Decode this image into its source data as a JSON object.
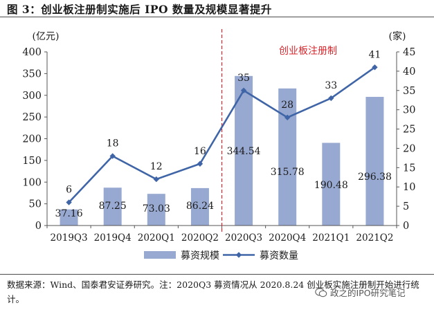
{
  "title": "图 3：创业板注册制实施后 IPO 数量及规模显著提升",
  "chart_data": {
    "type": "bar+line",
    "categories": [
      "2019Q3",
      "2019Q4",
      "2020Q1",
      "2020Q2",
      "2020Q3",
      "2020Q4",
      "2021Q1",
      "2021Q2"
    ],
    "series": [
      {
        "name": "募资规模",
        "type": "bar",
        "axis": "left",
        "values": [
          37.16,
          87.25,
          73.03,
          86.24,
          344.54,
          315.78,
          190.48,
          296.38
        ],
        "labels": [
          "37.16",
          "87.25",
          "73.03",
          "86.24",
          "344.54",
          "315.78",
          "190.48",
          "296.38"
        ]
      },
      {
        "name": "募资数量",
        "type": "line",
        "axis": "right",
        "values": [
          6,
          18,
          12,
          16,
          35,
          28,
          33,
          41
        ],
        "labels": [
          "6",
          "18",
          "12",
          "16",
          "35",
          "28",
          "33",
          "41"
        ]
      }
    ],
    "y_left": {
      "label": "(亿元)",
      "min": 0,
      "max": 400,
      "ticks": [
        0,
        50,
        100,
        150,
        200,
        250,
        300,
        350,
        400
      ]
    },
    "y_right": {
      "label": "(家)",
      "min": 0,
      "max": 45,
      "ticks": [
        0,
        5,
        10,
        15,
        20,
        25,
        30,
        35,
        40,
        45
      ]
    },
    "annotation": {
      "text": "创业板注册制",
      "divider_between": [
        "2020Q2",
        "2020Q3"
      ]
    },
    "legend": [
      "募资规模",
      "募资数量"
    ],
    "colors": {
      "bar": "#98a9d1",
      "line": "#3f65a7",
      "annotation": "#d9262c",
      "axis": "#555555"
    }
  },
  "footer": "数据来源：Wind、国泰君安证券研究。注：2020Q3 募资情况从 2020.8.24 创业板实施注册制开始进行统计。",
  "watermark": "政之的IPO研究笔记"
}
